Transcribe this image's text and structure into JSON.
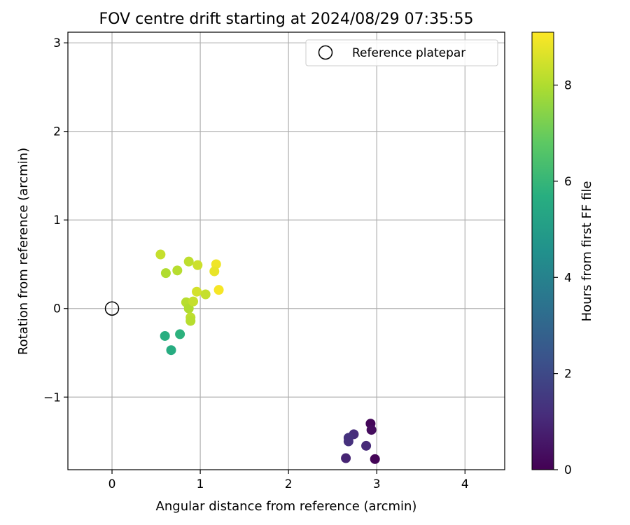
{
  "chart_data": {
    "type": "scatter",
    "title": "FOV centre drift starting at 2024/08/29 07:35:55",
    "xlabel": "Angular distance from reference (arcmin)",
    "ylabel": "Rotation from reference (arcmin)",
    "xlim": [
      -0.5,
      4.45
    ],
    "ylim": [
      -1.82,
      3.12
    ],
    "xticks": [
      0,
      1,
      2,
      3,
      4
    ],
    "yticks": [
      -1,
      0,
      1,
      2,
      3
    ],
    "xtick_labels": [
      "0",
      "1",
      "2",
      "3",
      "4"
    ],
    "ytick_labels": [
      "−1",
      "0",
      "1",
      "2",
      "3"
    ],
    "grid": true,
    "legend": {
      "placement": "top-right",
      "entries": [
        "Reference platepar"
      ]
    },
    "reference_point": {
      "name": "Reference platepar",
      "x": 0.0,
      "y": 0.0
    },
    "colorbar": {
      "label": "Hours from first FF file",
      "colormap": "viridis",
      "range": [
        0,
        9.1
      ],
      "ticks": [
        0,
        2,
        4,
        6,
        8
      ],
      "tick_labels": [
        "0",
        "2",
        "4",
        "6",
        "8"
      ]
    },
    "points": [
      {
        "x": 2.93,
        "y": -1.3,
        "hours": 0.15
      },
      {
        "x": 2.94,
        "y": -1.37,
        "hours": 0.3
      },
      {
        "x": 2.98,
        "y": -1.7,
        "hours": 0.1
      },
      {
        "x": 2.65,
        "y": -1.69,
        "hours": 0.9
      },
      {
        "x": 2.88,
        "y": -1.55,
        "hours": 1.05
      },
      {
        "x": 2.74,
        "y": -1.42,
        "hours": 1.15
      },
      {
        "x": 2.68,
        "y": -1.46,
        "hours": 1.3
      },
      {
        "x": 2.68,
        "y": -1.5,
        "hours": 1.25
      },
      {
        "x": 0.6,
        "y": -0.31,
        "hours": 5.7
      },
      {
        "x": 0.77,
        "y": -0.29,
        "hours": 5.8
      },
      {
        "x": 0.67,
        "y": -0.47,
        "hours": 5.6
      },
      {
        "x": 0.55,
        "y": 0.61,
        "hours": 8.3
      },
      {
        "x": 0.61,
        "y": 0.4,
        "hours": 8.0
      },
      {
        "x": 0.74,
        "y": 0.43,
        "hours": 8.1
      },
      {
        "x": 0.87,
        "y": 0.53,
        "hours": 8.2
      },
      {
        "x": 0.97,
        "y": 0.49,
        "hours": 8.4
      },
      {
        "x": 0.84,
        "y": 0.07,
        "hours": 8.1
      },
      {
        "x": 0.87,
        "y": 0.0,
        "hours": 8.0
      },
      {
        "x": 0.89,
        "y": -0.1,
        "hours": 8.2
      },
      {
        "x": 0.89,
        "y": -0.14,
        "hours": 8.1
      },
      {
        "x": 0.92,
        "y": 0.08,
        "hours": 8.3
      },
      {
        "x": 0.96,
        "y": 0.19,
        "hours": 8.5
      },
      {
        "x": 1.06,
        "y": 0.16,
        "hours": 8.3
      },
      {
        "x": 1.18,
        "y": 0.5,
        "hours": 8.9
      },
      {
        "x": 1.16,
        "y": 0.42,
        "hours": 8.8
      },
      {
        "x": 1.21,
        "y": 0.21,
        "hours": 9.0
      }
    ]
  }
}
